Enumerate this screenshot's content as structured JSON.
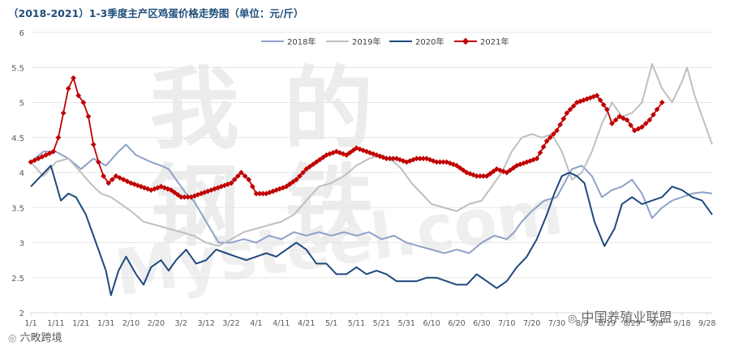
{
  "chart_data": {
    "type": "line",
    "title": "（2018-2021）1-3季度主产区鸡蛋价格走势图（单位：元/斤）",
    "xlabel": "",
    "ylabel": "元/斤",
    "ylim": [
      2,
      6
    ],
    "yticks": [
      "2",
      "2.5",
      "3",
      "3.5",
      "4",
      "4.5",
      "5",
      "5.5",
      "6"
    ],
    "xticks": [
      "1/1",
      "1/11",
      "1/21",
      "1/31",
      "2/10",
      "2/20",
      "3/2",
      "3/12",
      "3/22",
      "4/1",
      "4/11",
      "4/21",
      "5/1",
      "5/11",
      "5/21",
      "5/31",
      "6/10",
      "6/20",
      "6/30",
      "7/10",
      "7/20",
      "7/30",
      "8/9",
      "8/19",
      "8/29",
      "9/8",
      "9/18",
      "9/28"
    ],
    "x_start_day": 0,
    "x_end_day": 272,
    "series": [
      {
        "name": "2018年",
        "color": "#8EA1C8",
        "marker": false,
        "points": [
          [
            0,
            4.15
          ],
          [
            5,
            4.3
          ],
          [
            10,
            4.3
          ],
          [
            15,
            4.2
          ],
          [
            20,
            4.05
          ],
          [
            25,
            4.2
          ],
          [
            30,
            4.1
          ],
          [
            35,
            4.3
          ],
          [
            38,
            4.4
          ],
          [
            42,
            4.25
          ],
          [
            48,
            4.15
          ],
          [
            52,
            4.1
          ],
          [
            55,
            4.05
          ],
          [
            58,
            3.9
          ],
          [
            60,
            3.8
          ],
          [
            62,
            3.7
          ],
          [
            65,
            3.6
          ],
          [
            70,
            3.3
          ],
          [
            75,
            3.0
          ],
          [
            80,
            3.0
          ],
          [
            85,
            3.05
          ],
          [
            90,
            3.0
          ],
          [
            95,
            3.1
          ],
          [
            100,
            3.05
          ],
          [
            105,
            3.15
          ],
          [
            110,
            3.1
          ],
          [
            115,
            3.15
          ],
          [
            120,
            3.1
          ],
          [
            125,
            3.15
          ],
          [
            130,
            3.1
          ],
          [
            135,
            3.15
          ],
          [
            140,
            3.05
          ],
          [
            145,
            3.1
          ],
          [
            150,
            3.0
          ],
          [
            155,
            2.95
          ],
          [
            160,
            2.9
          ],
          [
            165,
            2.85
          ],
          [
            170,
            2.9
          ],
          [
            175,
            2.85
          ],
          [
            180,
            3.0
          ],
          [
            185,
            3.1
          ],
          [
            190,
            3.05
          ],
          [
            193,
            3.15
          ],
          [
            196,
            3.3
          ],
          [
            200,
            3.45
          ],
          [
            205,
            3.6
          ],
          [
            210,
            3.65
          ],
          [
            213,
            3.85
          ],
          [
            216,
            4.05
          ],
          [
            220,
            4.1
          ],
          [
            224,
            3.95
          ],
          [
            228,
            3.65
          ],
          [
            232,
            3.75
          ],
          [
            236,
            3.8
          ],
          [
            240,
            3.9
          ],
          [
            244,
            3.7
          ],
          [
            248,
            3.35
          ],
          [
            252,
            3.5
          ],
          [
            256,
            3.6
          ],
          [
            260,
            3.65
          ],
          [
            264,
            3.7
          ],
          [
            268,
            3.72
          ],
          [
            272,
            3.7
          ]
        ]
      },
      {
        "name": "2019年",
        "color": "#BFBFBF",
        "marker": false,
        "points": [
          [
            0,
            4.15
          ],
          [
            5,
            3.95
          ],
          [
            10,
            4.15
          ],
          [
            15,
            4.2
          ],
          [
            20,
            4.0
          ],
          [
            25,
            3.8
          ],
          [
            28,
            3.7
          ],
          [
            32,
            3.65
          ],
          [
            36,
            3.55
          ],
          [
            40,
            3.45
          ],
          [
            45,
            3.3
          ],
          [
            50,
            3.25
          ],
          [
            55,
            3.2
          ],
          [
            60,
            3.15
          ],
          [
            65,
            3.1
          ],
          [
            70,
            3.0
          ],
          [
            75,
            2.95
          ],
          [
            80,
            3.05
          ],
          [
            85,
            3.15
          ],
          [
            90,
            3.2
          ],
          [
            95,
            3.25
          ],
          [
            100,
            3.3
          ],
          [
            105,
            3.4
          ],
          [
            110,
            3.6
          ],
          [
            115,
            3.8
          ],
          [
            120,
            3.85
          ],
          [
            125,
            3.95
          ],
          [
            130,
            4.1
          ],
          [
            135,
            4.2
          ],
          [
            140,
            4.25
          ],
          [
            145,
            4.15
          ],
          [
            148,
            4.05
          ],
          [
            152,
            3.85
          ],
          [
            156,
            3.7
          ],
          [
            160,
            3.55
          ],
          [
            165,
            3.5
          ],
          [
            170,
            3.45
          ],
          [
            175,
            3.55
          ],
          [
            180,
            3.6
          ],
          [
            184,
            3.8
          ],
          [
            188,
            4.0
          ],
          [
            192,
            4.3
          ],
          [
            196,
            4.5
          ],
          [
            200,
            4.55
          ],
          [
            204,
            4.5
          ],
          [
            208,
            4.55
          ],
          [
            212,
            4.3
          ],
          [
            216,
            3.9
          ],
          [
            220,
            4.0
          ],
          [
            224,
            4.3
          ],
          [
            228,
            4.7
          ],
          [
            232,
            5.0
          ],
          [
            236,
            4.8
          ],
          [
            240,
            4.85
          ],
          [
            244,
            5.0
          ],
          [
            248,
            5.55
          ],
          [
            252,
            5.2
          ],
          [
            256,
            5.0
          ],
          [
            260,
            5.3
          ],
          [
            262,
            5.5
          ],
          [
            265,
            5.1
          ],
          [
            268,
            4.8
          ],
          [
            270,
            4.6
          ],
          [
            272,
            4.4
          ]
        ]
      },
      {
        "name": "2020年",
        "color": "#1F497D",
        "marker": false,
        "points": [
          [
            0,
            3.8
          ],
          [
            4,
            3.95
          ],
          [
            8,
            4.1
          ],
          [
            12,
            3.6
          ],
          [
            15,
            3.7
          ],
          [
            18,
            3.65
          ],
          [
            22,
            3.4
          ],
          [
            26,
            3.0
          ],
          [
            30,
            2.6
          ],
          [
            32,
            2.25
          ],
          [
            35,
            2.6
          ],
          [
            38,
            2.8
          ],
          [
            42,
            2.55
          ],
          [
            45,
            2.4
          ],
          [
            48,
            2.65
          ],
          [
            52,
            2.75
          ],
          [
            55,
            2.6
          ],
          [
            58,
            2.75
          ],
          [
            62,
            2.9
          ],
          [
            66,
            2.7
          ],
          [
            70,
            2.75
          ],
          [
            74,
            2.9
          ],
          [
            78,
            2.85
          ],
          [
            82,
            2.8
          ],
          [
            86,
            2.75
          ],
          [
            90,
            2.8
          ],
          [
            94,
            2.85
          ],
          [
            98,
            2.8
          ],
          [
            102,
            2.9
          ],
          [
            106,
            3.0
          ],
          [
            110,
            2.9
          ],
          [
            114,
            2.7
          ],
          [
            118,
            2.7
          ],
          [
            122,
            2.55
          ],
          [
            126,
            2.55
          ],
          [
            130,
            2.65
          ],
          [
            134,
            2.55
          ],
          [
            138,
            2.6
          ],
          [
            142,
            2.55
          ],
          [
            146,
            2.45
          ],
          [
            150,
            2.45
          ],
          [
            154,
            2.45
          ],
          [
            158,
            2.5
          ],
          [
            162,
            2.5
          ],
          [
            166,
            2.45
          ],
          [
            170,
            2.4
          ],
          [
            174,
            2.4
          ],
          [
            178,
            2.55
          ],
          [
            182,
            2.45
          ],
          [
            186,
            2.35
          ],
          [
            190,
            2.45
          ],
          [
            194,
            2.65
          ],
          [
            198,
            2.8
          ],
          [
            202,
            3.05
          ],
          [
            206,
            3.4
          ],
          [
            209,
            3.7
          ],
          [
            212,
            3.95
          ],
          [
            215,
            4.0
          ],
          [
            218,
            3.95
          ],
          [
            221,
            3.85
          ],
          [
            225,
            3.3
          ],
          [
            229,
            2.95
          ],
          [
            233,
            3.2
          ],
          [
            236,
            3.55
          ],
          [
            240,
            3.65
          ],
          [
            244,
            3.55
          ],
          [
            248,
            3.6
          ],
          [
            252,
            3.65
          ],
          [
            256,
            3.8
          ],
          [
            260,
            3.75
          ],
          [
            264,
            3.65
          ],
          [
            268,
            3.6
          ],
          [
            272,
            3.4
          ]
        ]
      },
      {
        "name": "2021年",
        "color": "#C00000",
        "marker": true,
        "marker_color": "#C00000",
        "points": [
          [
            0,
            4.15
          ],
          [
            3,
            4.2
          ],
          [
            6,
            4.25
          ],
          [
            9,
            4.3
          ],
          [
            11,
            4.5
          ],
          [
            13,
            4.85
          ],
          [
            15,
            5.2
          ],
          [
            17,
            5.35
          ],
          [
            19,
            5.1
          ],
          [
            21,
            5.0
          ],
          [
            23,
            4.8
          ],
          [
            25,
            4.4
          ],
          [
            27,
            4.15
          ],
          [
            29,
            3.95
          ],
          [
            31,
            3.85
          ],
          [
            34,
            3.95
          ],
          [
            37,
            3.9
          ],
          [
            40,
            3.85
          ],
          [
            44,
            3.8
          ],
          [
            48,
            3.75
          ],
          [
            52,
            3.8
          ],
          [
            56,
            3.75
          ],
          [
            60,
            3.65
          ],
          [
            64,
            3.65
          ],
          [
            68,
            3.7
          ],
          [
            72,
            3.75
          ],
          [
            76,
            3.8
          ],
          [
            80,
            3.85
          ],
          [
            84,
            4.0
          ],
          [
            87,
            3.9
          ],
          [
            90,
            3.7
          ],
          [
            94,
            3.7
          ],
          [
            98,
            3.75
          ],
          [
            102,
            3.8
          ],
          [
            106,
            3.9
          ],
          [
            110,
            4.05
          ],
          [
            114,
            4.15
          ],
          [
            118,
            4.25
          ],
          [
            122,
            4.3
          ],
          [
            126,
            4.25
          ],
          [
            130,
            4.35
          ],
          [
            134,
            4.3
          ],
          [
            138,
            4.25
          ],
          [
            142,
            4.2
          ],
          [
            146,
            4.2
          ],
          [
            150,
            4.15
          ],
          [
            154,
            4.2
          ],
          [
            158,
            4.2
          ],
          [
            162,
            4.15
          ],
          [
            166,
            4.15
          ],
          [
            170,
            4.1
          ],
          [
            174,
            4.0
          ],
          [
            178,
            3.95
          ],
          [
            182,
            3.95
          ],
          [
            186,
            4.05
          ],
          [
            190,
            4.0
          ],
          [
            194,
            4.1
          ],
          [
            198,
            4.15
          ],
          [
            202,
            4.2
          ],
          [
            206,
            4.45
          ],
          [
            210,
            4.6
          ],
          [
            214,
            4.85
          ],
          [
            218,
            5.0
          ],
          [
            222,
            5.05
          ],
          [
            226,
            5.1
          ],
          [
            230,
            4.9
          ],
          [
            232,
            4.7
          ],
          [
            235,
            4.8
          ],
          [
            238,
            4.75
          ],
          [
            241,
            4.6
          ],
          [
            244,
            4.65
          ],
          [
            247,
            4.75
          ],
          [
            250,
            4.9
          ],
          [
            252,
            5.0
          ]
        ]
      }
    ]
  },
  "watermark": {
    "chars": [
      "我",
      "的",
      "钢",
      "铁"
    ],
    "latin": "Mysteel.com"
  },
  "footer": {
    "left_text": "六畋跨境",
    "right_text": "中国养殖业联盟"
  }
}
